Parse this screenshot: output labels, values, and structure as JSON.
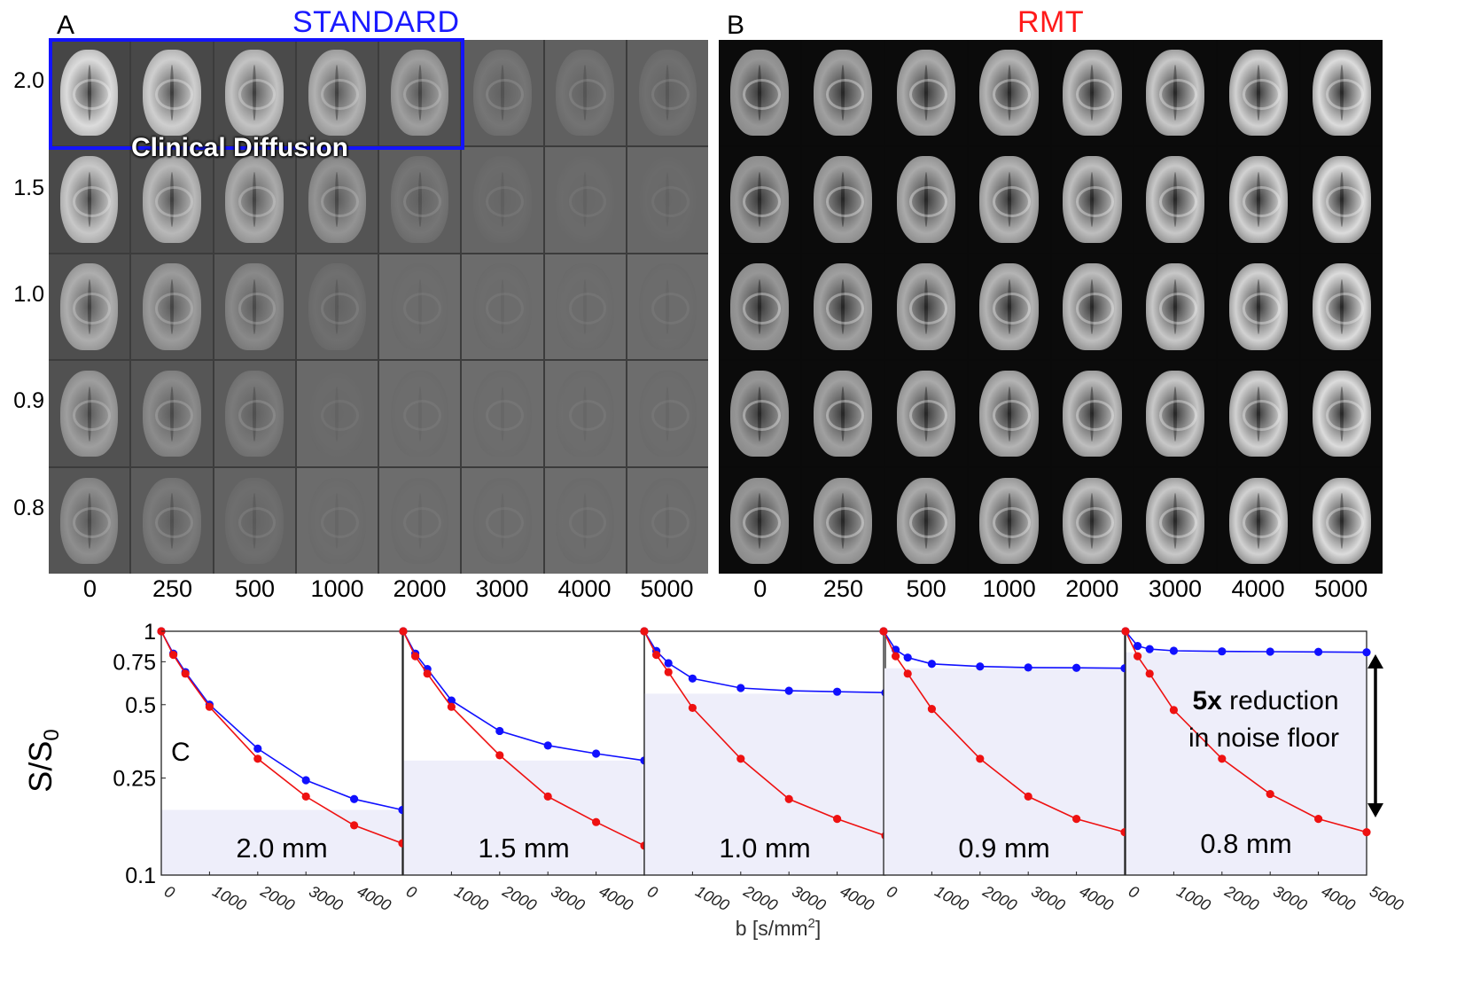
{
  "panelA": {
    "letter": "A",
    "title": "STANDARD",
    "title_color": "#1a1aff",
    "overlay_label": "Clinical Diffusion",
    "overlay_color": "#1414ff"
  },
  "panelB": {
    "letter": "B",
    "title": "RMT",
    "title_color": "#ff1a1a"
  },
  "resolutions": [
    "2.0",
    "1.5",
    "1.0",
    "0.9",
    "0.8"
  ],
  "b_values": [
    "0",
    "250",
    "500",
    "1000",
    "2000",
    "3000",
    "4000",
    "5000"
  ],
  "standard_signal_visibility": [
    [
      1.0,
      0.95,
      0.9,
      0.82,
      0.72,
      0.4,
      0.36,
      0.32
    ],
    [
      0.92,
      0.85,
      0.78,
      0.65,
      0.4,
      0.2,
      0.16,
      0.14
    ],
    [
      0.8,
      0.7,
      0.58,
      0.3,
      0.06,
      0.05,
      0.05,
      0.04
    ],
    [
      0.72,
      0.6,
      0.45,
      0.12,
      0.03,
      0.03,
      0.03,
      0.03
    ],
    [
      0.62,
      0.45,
      0.28,
      0.05,
      0.02,
      0.02,
      0.02,
      0.02
    ]
  ],
  "panelC": {
    "letter": "C",
    "ylabel_main": "S/S",
    "ylabel_sub": "0",
    "xlabel_main": "b [s/mm",
    "xlabel_sup": "2",
    "xlabel_end": "]",
    "annotation_bold": "5x",
    "annotation_rest": " reduction",
    "annotation_line2": "in noise floor",
    "series_colors": {
      "standard": "#1010ff",
      "rmt": "#ee1111",
      "noise_floor": "#eeeefa"
    }
  },
  "chart_data": {
    "type": "line",
    "y_scale": "log",
    "ylim": [
      0.1,
      1.0
    ],
    "y_ticks": [
      {
        "v": 0.1,
        "label": "0.1"
      },
      {
        "v": 0.25,
        "label": "0.25"
      },
      {
        "v": 0.5,
        "label": "0.5"
      },
      {
        "v": 0.75,
        "label": "0.75"
      },
      {
        "v": 1.0,
        "label": "1"
      }
    ],
    "xlim": [
      0,
      5000
    ],
    "x_tick_labels_per_panel": [
      [
        "0",
        "1000",
        "2000",
        "3000",
        "4000"
      ],
      [
        "0",
        "1000",
        "2000",
        "3000",
        "4000"
      ],
      [
        "0",
        "1000",
        "2000",
        "3000",
        "4000"
      ],
      [
        "0",
        "1000",
        "2000",
        "3000",
        "4000"
      ],
      [
        "0",
        "1000",
        "2000",
        "3000",
        "4000",
        "5000"
      ]
    ],
    "x": [
      0,
      250,
      500,
      1000,
      2000,
      3000,
      4000,
      5000
    ],
    "panels": [
      {
        "label": "2.0 mm",
        "noise_floor": 0.185,
        "standard": [
          1.0,
          0.81,
          0.68,
          0.5,
          0.33,
          0.245,
          0.205,
          0.185
        ],
        "rmt": [
          1.0,
          0.8,
          0.67,
          0.49,
          0.3,
          0.21,
          0.16,
          0.135
        ]
      },
      {
        "label": "1.5 mm",
        "noise_floor": 0.295,
        "standard": [
          1.0,
          0.81,
          0.7,
          0.52,
          0.39,
          0.34,
          0.315,
          0.295
        ],
        "rmt": [
          1.0,
          0.79,
          0.67,
          0.49,
          0.31,
          0.21,
          0.165,
          0.132
        ]
      },
      {
        "label": "1.0 mm",
        "noise_floor": 0.555,
        "standard": [
          1.0,
          0.83,
          0.74,
          0.64,
          0.585,
          0.57,
          0.565,
          0.56
        ],
        "rmt": [
          1.0,
          0.8,
          0.68,
          0.485,
          0.3,
          0.205,
          0.17,
          0.145
        ]
      },
      {
        "label": "0.9 mm",
        "noise_floor": 0.705,
        "standard": [
          1.0,
          0.84,
          0.78,
          0.735,
          0.717,
          0.71,
          0.708,
          0.705
        ],
        "rmt": [
          1.0,
          0.79,
          0.67,
          0.48,
          0.3,
          0.21,
          0.17,
          0.15
        ]
      },
      {
        "label": "0.8 mm",
        "noise_floor": 0.82,
        "standard": [
          1.0,
          0.87,
          0.845,
          0.832,
          0.827,
          0.825,
          0.823,
          0.82
        ],
        "rmt": [
          1.0,
          0.79,
          0.67,
          0.475,
          0.3,
          0.215,
          0.17,
          0.15
        ]
      }
    ]
  }
}
